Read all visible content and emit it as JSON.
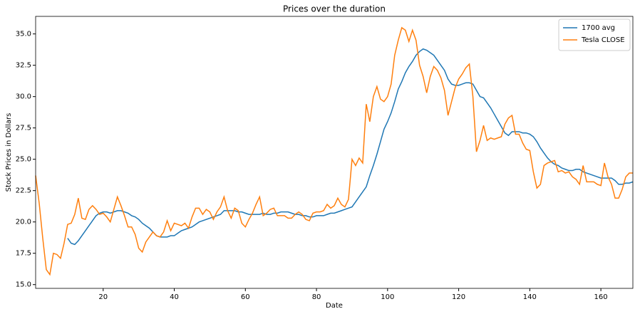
{
  "chart_data": {
    "type": "line",
    "title": "Prices over the duration",
    "xlabel": "Date",
    "ylabel": "Stock Prices in Dollars",
    "x": [
      1,
      2,
      3,
      4,
      5,
      6,
      7,
      8,
      9,
      10,
      11,
      12,
      13,
      14,
      15,
      16,
      17,
      18,
      19,
      20,
      21,
      22,
      23,
      24,
      25,
      26,
      27,
      28,
      29,
      30,
      31,
      32,
      33,
      34,
      35,
      36,
      37,
      38,
      39,
      40,
      41,
      42,
      43,
      44,
      45,
      46,
      47,
      48,
      49,
      50,
      51,
      52,
      53,
      54,
      55,
      56,
      57,
      58,
      59,
      60,
      61,
      62,
      63,
      64,
      65,
      66,
      67,
      68,
      69,
      70,
      71,
      72,
      73,
      74,
      75,
      76,
      77,
      78,
      79,
      80,
      81,
      82,
      83,
      84,
      85,
      86,
      87,
      88,
      89,
      90,
      91,
      92,
      93,
      94,
      95,
      96,
      97,
      98,
      99,
      100,
      101,
      102,
      103,
      104,
      105,
      106,
      107,
      108,
      109,
      110,
      111,
      112,
      113,
      114,
      115,
      116,
      117,
      118,
      119,
      120,
      121,
      122,
      123,
      124,
      125,
      126,
      127,
      128,
      129,
      130,
      131,
      132,
      133,
      134,
      135,
      136,
      137,
      138,
      139,
      140,
      141,
      142,
      143,
      144,
      145,
      146,
      147,
      148,
      149,
      150,
      151,
      152,
      153,
      154,
      155,
      156,
      157,
      158,
      159,
      160,
      161,
      162,
      163,
      164,
      165,
      166,
      167,
      168,
      169
    ],
    "series": [
      {
        "name": "1700 avg",
        "color": "#1f77b4",
        "values": [
          null,
          null,
          null,
          null,
          null,
          null,
          null,
          null,
          null,
          18.7,
          18.3,
          18.2,
          18.5,
          18.9,
          19.3,
          19.7,
          20.1,
          20.5,
          20.7,
          20.8,
          20.8,
          20.7,
          20.8,
          20.9,
          20.9,
          20.8,
          20.7,
          20.5,
          20.4,
          20.2,
          19.9,
          19.7,
          19.5,
          19.2,
          18.9,
          18.8,
          18.8,
          18.8,
          18.9,
          18.9,
          19.1,
          19.3,
          19.4,
          19.5,
          19.6,
          19.8,
          20.0,
          20.1,
          20.2,
          20.3,
          20.4,
          20.5,
          20.6,
          20.9,
          20.9,
          20.9,
          20.9,
          20.8,
          20.8,
          20.7,
          20.6,
          20.6,
          20.6,
          20.6,
          20.7,
          20.6,
          20.6,
          20.7,
          20.7,
          20.8,
          20.8,
          20.8,
          20.7,
          20.6,
          20.6,
          20.5,
          20.5,
          20.4,
          20.4,
          20.5,
          20.5,
          20.5,
          20.6,
          20.7,
          20.7,
          20.8,
          20.9,
          21.0,
          21.1,
          21.2,
          21.6,
          22.0,
          22.4,
          22.8,
          23.7,
          24.5,
          25.4,
          26.4,
          27.4,
          28.0,
          28.7,
          29.6,
          30.6,
          31.2,
          31.9,
          32.4,
          32.8,
          33.3,
          33.6,
          33.8,
          33.7,
          33.5,
          33.3,
          32.9,
          32.5,
          32.1,
          31.4,
          31.0,
          30.9,
          30.9,
          31.0,
          31.1,
          31.1,
          31.0,
          30.5,
          30.0,
          29.9,
          29.5,
          29.1,
          28.6,
          28.1,
          27.6,
          27.1,
          26.9,
          27.2,
          27.2,
          27.2,
          27.1,
          27.1,
          27.0,
          26.8,
          26.4,
          25.9,
          25.5,
          25.1,
          24.8,
          24.6,
          24.5,
          24.3,
          24.2,
          24.1,
          24.1,
          24.2,
          24.2,
          24.0,
          23.9,
          23.8,
          23.7,
          23.6,
          23.5,
          23.5,
          23.5,
          23.5,
          23.3,
          23.0,
          23.0,
          23.1,
          23.1,
          23.2
        ]
      },
      {
        "name": "Tesla CLOSE",
        "color": "#ff7f0e",
        "values": [
          23.7,
          21.5,
          18.7,
          16.2,
          15.8,
          17.5,
          17.4,
          17.1,
          18.3,
          19.8,
          19.9,
          20.6,
          21.9,
          20.3,
          20.2,
          21.0,
          21.3,
          21.0,
          20.6,
          20.7,
          20.4,
          20.0,
          21.0,
          22.0,
          21.3,
          20.5,
          19.6,
          19.6,
          19.0,
          17.9,
          17.6,
          18.4,
          18.8,
          19.2,
          18.9,
          18.8,
          19.2,
          20.1,
          19.3,
          19.9,
          19.8,
          19.7,
          19.9,
          19.5,
          20.4,
          21.1,
          21.1,
          20.6,
          21.0,
          20.8,
          20.2,
          20.8,
          21.2,
          22.0,
          20.9,
          20.3,
          21.1,
          20.9,
          19.9,
          19.6,
          20.2,
          20.7,
          21.4,
          22.0,
          20.5,
          20.7,
          21.0,
          21.1,
          20.5,
          20.5,
          20.5,
          20.3,
          20.3,
          20.6,
          20.8,
          20.6,
          20.2,
          20.1,
          20.7,
          20.8,
          20.8,
          20.9,
          21.4,
          21.1,
          21.3,
          21.9,
          21.4,
          21.2,
          21.8,
          25.0,
          24.5,
          25.1,
          24.7,
          29.4,
          28.0,
          30.0,
          30.8,
          29.8,
          29.6,
          30.0,
          31.0,
          33.3,
          34.5,
          35.5,
          35.3,
          34.4,
          35.3,
          34.5,
          32.5,
          31.6,
          30.3,
          31.6,
          32.4,
          32.1,
          31.5,
          30.5,
          28.5,
          29.6,
          30.7,
          31.4,
          31.8,
          32.3,
          32.6,
          30.0,
          25.6,
          26.5,
          27.7,
          26.5,
          26.7,
          26.6,
          26.7,
          26.8,
          27.8,
          28.3,
          28.5,
          27.0,
          27.0,
          26.3,
          25.8,
          25.7,
          24.0,
          22.7,
          23.0,
          24.5,
          24.7,
          24.8,
          24.9,
          24.0,
          24.1,
          23.9,
          24.0,
          23.6,
          23.4,
          23.0,
          24.5,
          23.2,
          23.2,
          23.2,
          23.0,
          22.9,
          24.7,
          23.6,
          23.0,
          21.9,
          21.9,
          22.6,
          23.6,
          23.9,
          23.9
        ]
      }
    ],
    "xlim": [
      1,
      169
    ],
    "ylim": [
      14.7,
      36.4
    ],
    "xticks": [
      20,
      40,
      60,
      80,
      100,
      120,
      140,
      160
    ],
    "yticks": [
      {
        "value": 15,
        "label": "15.0"
      },
      17.5,
      {
        "value": 20,
        "label": "20.0"
      },
      22.5,
      {
        "value": 25,
        "label": "25.0"
      },
      27.5,
      {
        "value": 30,
        "label": "30.0"
      },
      32.5,
      {
        "value": 35,
        "label": "35.0"
      }
    ],
    "legend": "upper right",
    "grid": false
  }
}
